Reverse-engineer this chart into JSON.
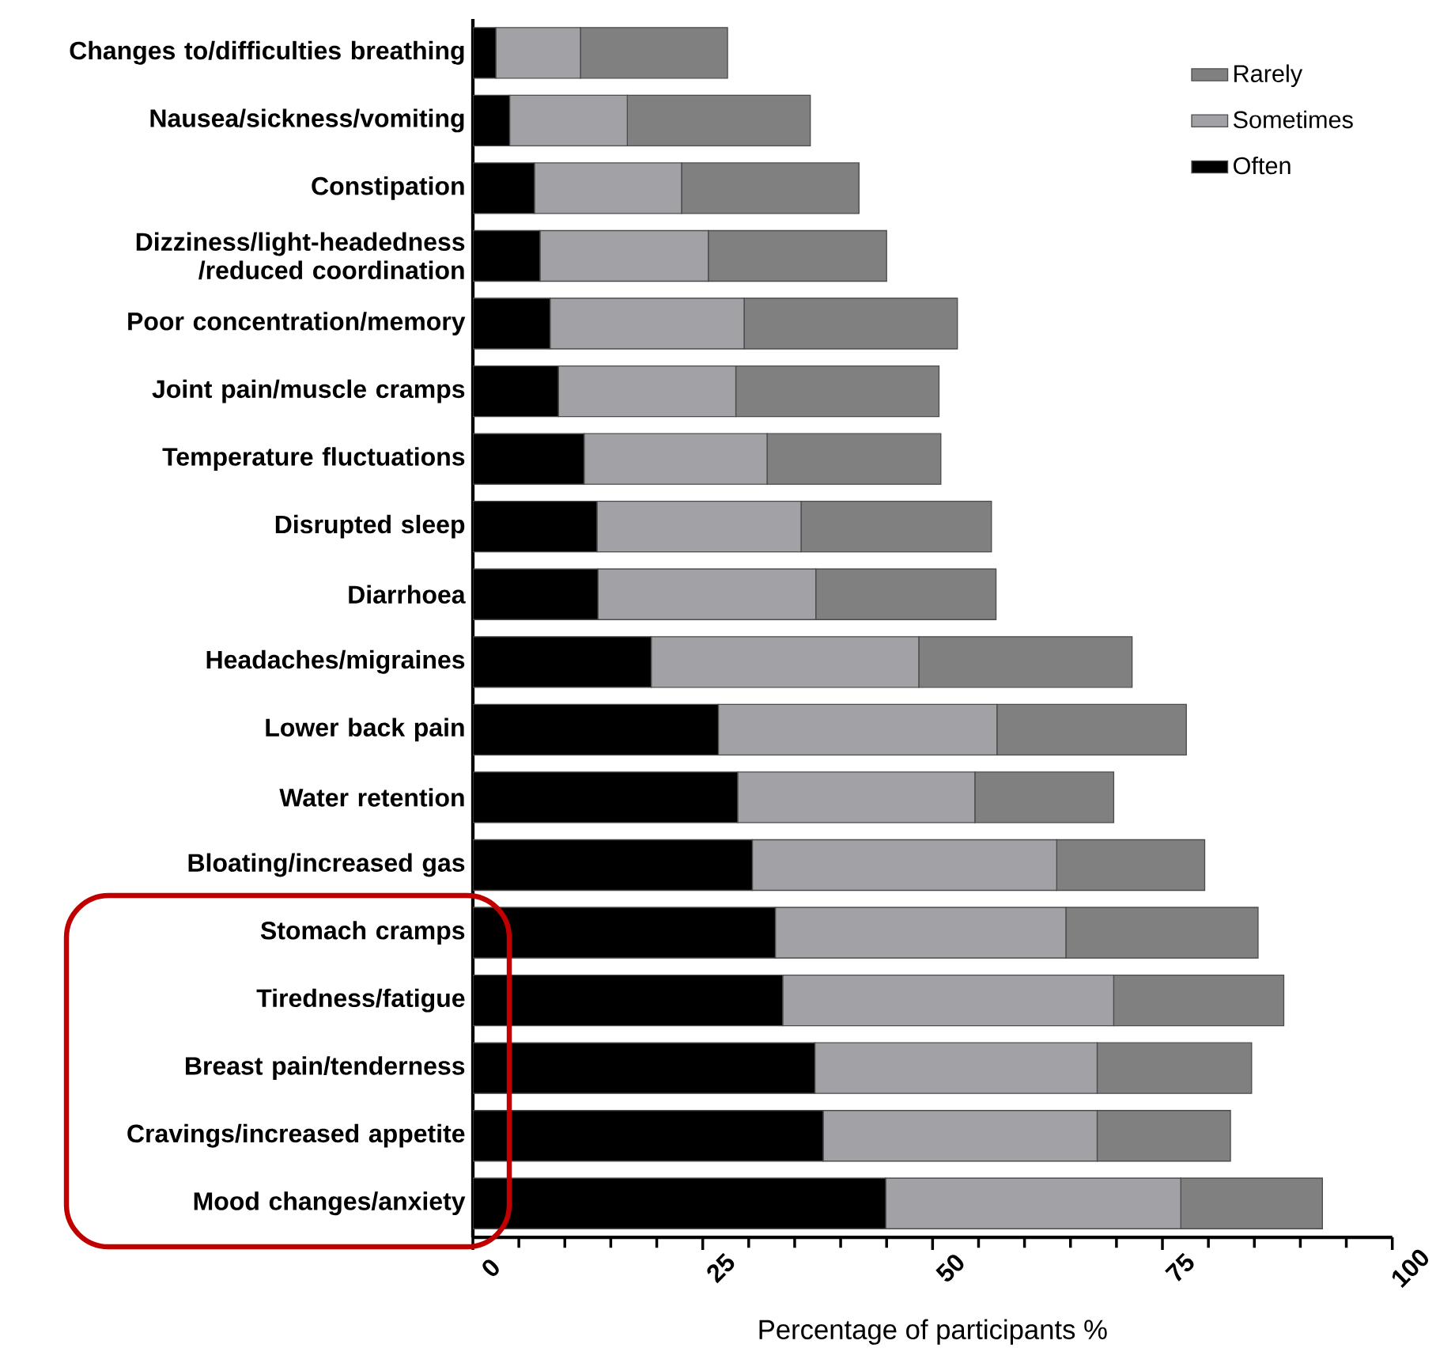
{
  "chart_data": {
    "type": "bar",
    "orientation": "horizontal",
    "stacked": true,
    "categories": [
      "Changes to/difficulties breathing",
      "Nausea/sickness/vomiting",
      "Constipation",
      "Dizziness/light-headedness /reduced coordination",
      "Poor concentration/memory",
      "Joint pain/muscle cramps",
      "Temperature fluctuations",
      "Disrupted sleep",
      "Diarrhoea",
      "Headaches/migraines",
      "Lower back pain",
      "Water retention",
      "Bloating/increased gas",
      "Stomach cramps",
      "Tiredness/fatigue",
      "Breast pain/tenderness",
      "Cravings/increased appetite",
      "Mood changes/anxiety"
    ],
    "series": [
      {
        "name": "Often",
        "color": "#000000",
        "values": [
          2.5,
          4.0,
          6.7,
          7.3,
          8.4,
          9.3,
          12.1,
          13.5,
          13.6,
          19.4,
          26.7,
          28.8,
          30.4,
          32.9,
          33.7,
          37.2,
          38.1,
          44.9
        ]
      },
      {
        "name": "Sometimes",
        "color": "#a2a1a6",
        "values": [
          9.2,
          12.8,
          16.0,
          18.3,
          21.1,
          19.3,
          19.9,
          22.2,
          23.7,
          29.1,
          30.3,
          25.8,
          33.1,
          31.6,
          36.0,
          30.7,
          29.8,
          32.1
        ]
      },
      {
        "name": "Rarely",
        "color": "#808080",
        "values": [
          16.0,
          19.9,
          19.3,
          19.4,
          23.2,
          22.1,
          18.9,
          20.7,
          19.6,
          23.2,
          20.6,
          15.1,
          16.1,
          20.9,
          18.5,
          16.8,
          14.5,
          15.4
        ]
      }
    ],
    "xlim": [
      0,
      100
    ],
    "xticks": [
      0,
      25,
      50,
      75,
      100
    ],
    "xlabel": "Percentage of participants %",
    "legend": "top right"
  }
}
